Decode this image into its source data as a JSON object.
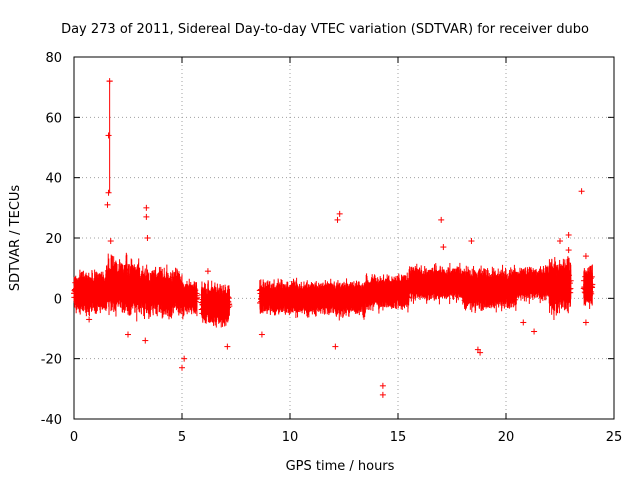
{
  "chart_data": {
    "type": "scatter",
    "title": "Day 273 of 2011, Sidereal Day-to-day VTEC variation (SDTVAR) for receiver dubo",
    "xlabel": "GPS time / hours",
    "ylabel": "SDTVAR / TECUs",
    "xlim": [
      0,
      25
    ],
    "ylim": [
      -40,
      80
    ],
    "xticks": [
      0,
      5,
      10,
      15,
      20,
      25
    ],
    "yticks": [
      -40,
      -20,
      0,
      20,
      40,
      60,
      80
    ],
    "grid": true,
    "marker": "plus",
    "error_bars": true,
    "series_color": "#ff0000",
    "bands": [
      {
        "x": [
          0.0,
          1.5
        ],
        "center": 2,
        "spread": 5
      },
      {
        "x": [
          1.5,
          3.0
        ],
        "center": 4,
        "spread": 7
      },
      {
        "x": [
          3.0,
          5.0
        ],
        "center": 2,
        "spread": 6
      },
      {
        "x": [
          5.0,
          5.7
        ],
        "center": 0,
        "spread": 4
      },
      {
        "x": [
          5.9,
          7.2
        ],
        "center": -2,
        "spread": 5
      },
      {
        "x": [
          8.6,
          10.5
        ],
        "center": 0,
        "spread": 4
      },
      {
        "x": [
          10.5,
          13.5
        ],
        "center": 0,
        "spread": 4
      },
      {
        "x": [
          13.5,
          15.5
        ],
        "center": 2,
        "spread": 4
      },
      {
        "x": [
          15.5,
          18.0
        ],
        "center": 5,
        "spread": 4
      },
      {
        "x": [
          18.0,
          20.5
        ],
        "center": 3,
        "spread": 5
      },
      {
        "x": [
          20.5,
          22.0
        ],
        "center": 5,
        "spread": 4
      },
      {
        "x": [
          22.0,
          23.0
        ],
        "center": 4,
        "spread": 7
      },
      {
        "x": [
          23.6,
          24.0
        ],
        "center": 4,
        "spread": 5
      }
    ],
    "outliers": [
      {
        "x": 1.65,
        "y": 72,
        "err_low": 35,
        "err_high": 72
      },
      {
        "x": 1.6,
        "y": 54
      },
      {
        "x": 1.6,
        "y": 35
      },
      {
        "x": 1.55,
        "y": 31
      },
      {
        "x": 1.7,
        "y": 19
      },
      {
        "x": 3.35,
        "y": 30
      },
      {
        "x": 3.35,
        "y": 27
      },
      {
        "x": 3.4,
        "y": 20
      },
      {
        "x": 3.3,
        "y": -14
      },
      {
        "x": 5.0,
        "y": -23
      },
      {
        "x": 5.1,
        "y": -20
      },
      {
        "x": 8.7,
        "y": -12
      },
      {
        "x": 12.3,
        "y": 28
      },
      {
        "x": 12.2,
        "y": 26
      },
      {
        "x": 12.1,
        "y": -16
      },
      {
        "x": 14.3,
        "y": -29
      },
      {
        "x": 14.3,
        "y": -32
      },
      {
        "x": 17.0,
        "y": 26
      },
      {
        "x": 17.1,
        "y": 17
      },
      {
        "x": 18.4,
        "y": 19
      },
      {
        "x": 18.8,
        "y": -18
      },
      {
        "x": 18.7,
        "y": -17
      },
      {
        "x": 21.3,
        "y": -11
      },
      {
        "x": 22.5,
        "y": 19
      },
      {
        "x": 22.9,
        "y": 21
      },
      {
        "x": 22.9,
        "y": 16
      },
      {
        "x": 23.5,
        "y": 35.5
      },
      {
        "x": 23.7,
        "y": -8
      },
      {
        "x": 23.7,
        "y": 14
      },
      {
        "x": 20.8,
        "y": -8
      },
      {
        "x": 6.2,
        "y": 9
      },
      {
        "x": 7.1,
        "y": -16
      },
      {
        "x": 0.7,
        "y": -7
      },
      {
        "x": 2.5,
        "y": -12
      }
    ]
  }
}
